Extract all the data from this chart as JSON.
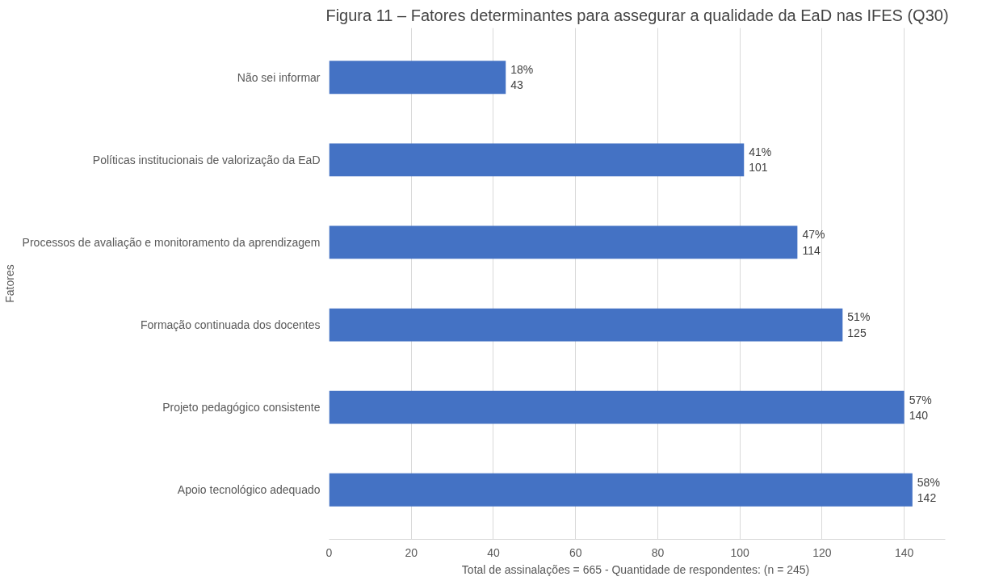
{
  "chart_data": {
    "type": "bar",
    "orientation": "horizontal",
    "title": "Figura 11 – Fatores determinantes para assegurar a qualidade da EaD nas IFES (Q30)",
    "xlabel": "Total de assinalações = 665  - Quantidade de respondentes: (n = 245)",
    "ylabel": "Fatores",
    "categories": [
      "Não sei informar",
      "Políticas institucionais de valorização da EaD",
      "Processos de avaliação e monitoramento da aprendizagem",
      "Formação continuada dos docentes",
      "Projeto pedagógico consistente",
      "Apoio tecnológico adequado"
    ],
    "values": [
      43,
      101,
      114,
      125,
      140,
      142
    ],
    "value_labels": [
      "18%\n43",
      "41%\n101",
      "47%\n114",
      "51%\n125",
      "57%\n140",
      "58%\n142"
    ],
    "color": "#4472c4",
    "xlim": [
      0,
      150
    ],
    "xticks": [
      0,
      20,
      40,
      60,
      80,
      100,
      120,
      140
    ],
    "grid": "x"
  }
}
